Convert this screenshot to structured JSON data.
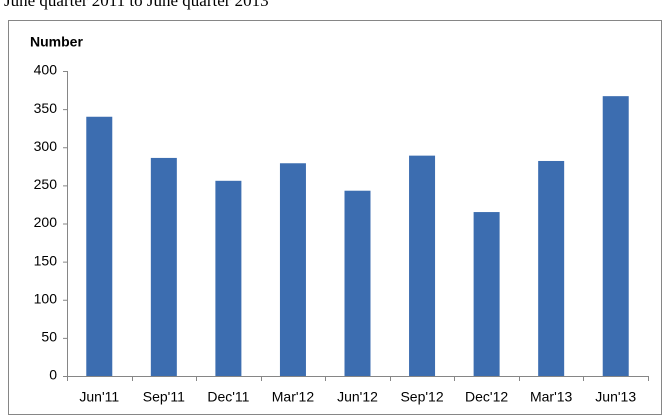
{
  "chart_data": {
    "type": "bar",
    "title": "June quarter 2011 to June quarter 2013",
    "y_label": "Number",
    "categories": [
      "Jun'11",
      "Sep'11",
      "Dec'11",
      "Mar'12",
      "Jun'12",
      "Sep'12",
      "Dec'12",
      "Mar'13",
      "Jun'13"
    ],
    "values": [
      340,
      286,
      256,
      279,
      243,
      289,
      215,
      282,
      367
    ],
    "color": "#3c6db0",
    "ylim": [
      0,
      400
    ],
    "yticks": [
      0,
      50,
      100,
      150,
      200,
      250,
      300,
      350,
      400
    ],
    "grid": false
  }
}
